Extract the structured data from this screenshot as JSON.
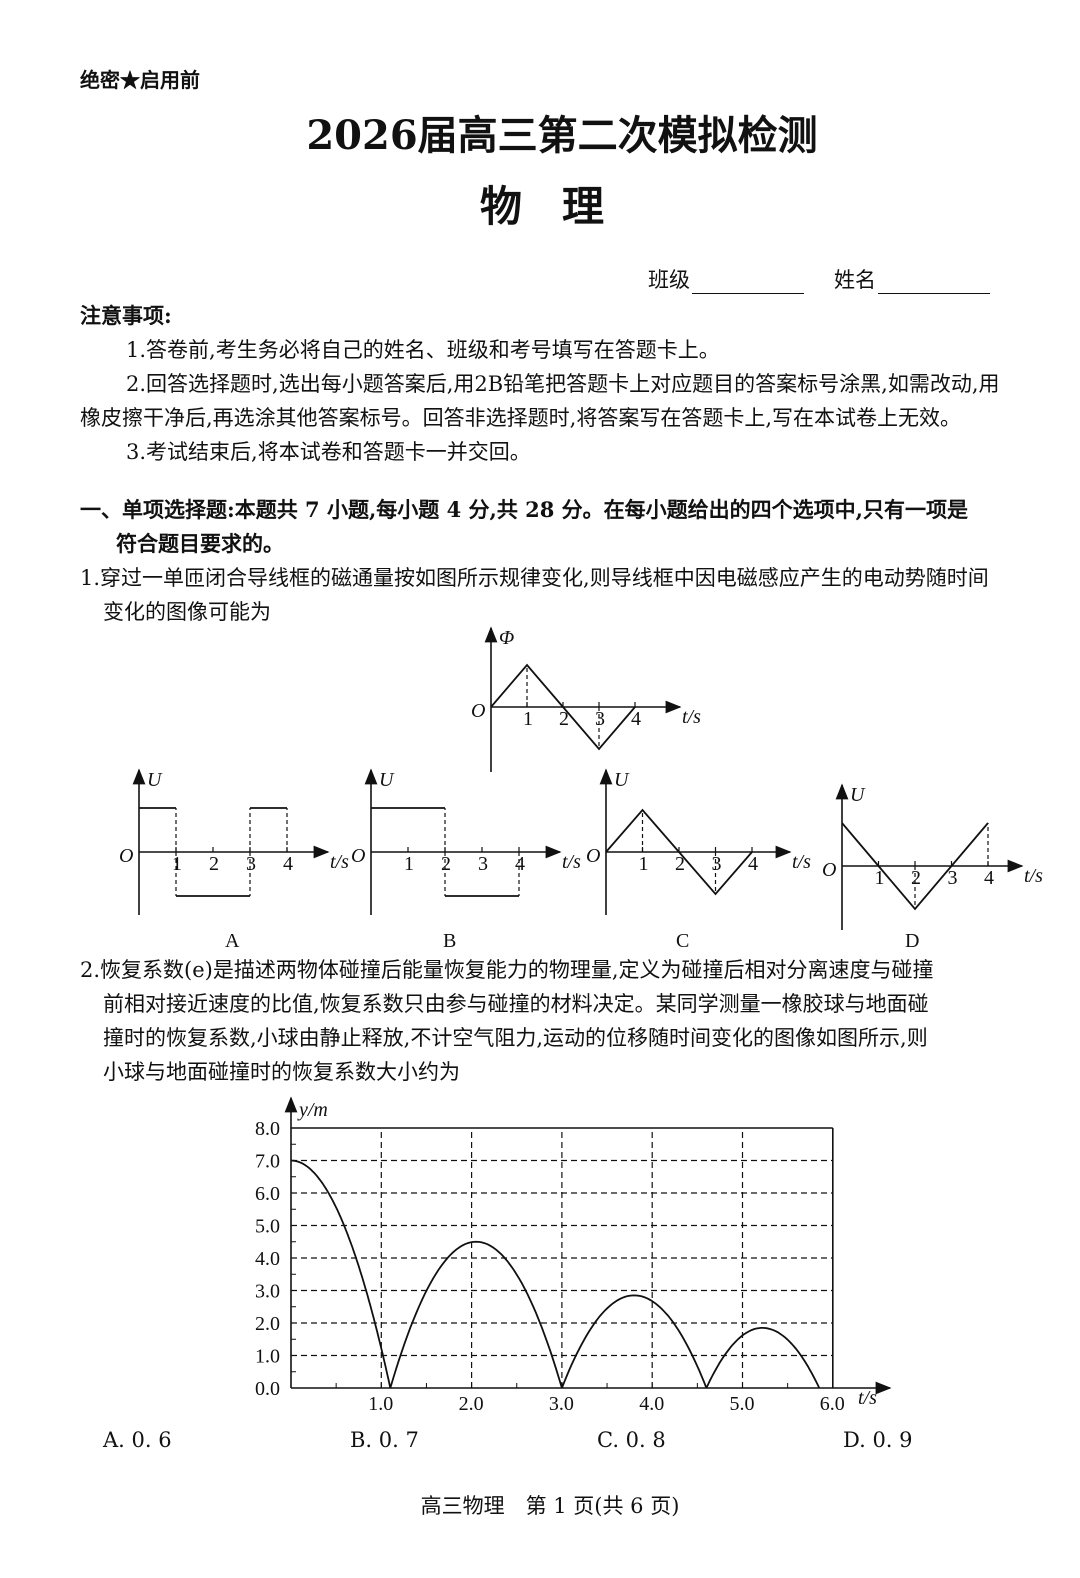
{
  "header": {
    "secret": "绝密★启用前",
    "title": "2026届高三第二次模拟检测",
    "subject": "物理",
    "class_label": "班级",
    "name_label": "姓名"
  },
  "notes": {
    "heading": "注意事项:",
    "lines": [
      "1.答卷前,考生务必将自己的姓名、班级和考号填写在答题卡上。",
      "2.回答选择题时,选出每小题答案后,用2B铅笔把答题卡上对应题目的答案标号涂黑,如需改动,用",
      "橡皮擦干净后,再选涂其他答案标号。回答非选择题时,将答案写在答题卡上,写在本试卷上无效。",
      "3.考试结束后,将本试卷和答题卡一并交回。"
    ]
  },
  "section": {
    "lines": [
      "一、单项选择题:本题共 7 小题,每小题 4 分,共 28 分。在每小题给出的四个选项中,只有一项是",
      "符合题目要求的。"
    ]
  },
  "q1": {
    "lines": [
      "1.穿过一单匝闭合导线框的磁通量按如图所示规律变化,则导线框中因电磁感应产生的电动势随时间",
      "变化的图像可能为"
    ],
    "graphs": [
      {
        "id": "phi",
        "ylabel": "Φ",
        "xlabel": "t/s",
        "origin": "O",
        "ticks": [
          "1",
          "2",
          "3",
          "4"
        ],
        "points": [
          [
            0,
            0
          ],
          [
            1,
            1
          ],
          [
            2,
            0
          ],
          [
            3,
            -1
          ],
          [
            4,
            0
          ]
        ],
        "dashed": [
          [
            1,
            1
          ],
          [
            3,
            -1
          ]
        ]
      },
      {
        "id": "A",
        "caption": "A",
        "ylabel": "U",
        "xlabel": "t/s",
        "origin": "O",
        "ticks": [
          "1",
          "2",
          "3",
          "4"
        ],
        "points": [
          [
            0,
            1
          ],
          [
            1,
            1
          ],
          null,
          [
            1,
            -1
          ],
          [
            3,
            -1
          ],
          null,
          [
            3,
            1
          ],
          [
            4,
            1
          ]
        ],
        "dashed": [
          [
            1,
            1
          ],
          [
            1,
            -1
          ],
          [
            3,
            -1
          ],
          [
            3,
            1
          ],
          [
            4,
            1
          ],
          [
            4,
            0
          ]
        ]
      },
      {
        "id": "B",
        "caption": "B",
        "ylabel": "U",
        "xlabel": "t/s",
        "origin": "O",
        "ticks": [
          "1",
          "2",
          "3",
          "4"
        ],
        "points": [
          [
            0,
            1
          ],
          [
            2,
            1
          ],
          null,
          [
            2,
            -1
          ],
          [
            4,
            -1
          ]
        ],
        "dashed": [
          [
            2,
            1
          ],
          [
            2,
            -1
          ],
          [
            4,
            -1
          ],
          [
            4,
            0
          ]
        ]
      },
      {
        "id": "C",
        "caption": "C",
        "ylabel": "U",
        "xlabel": "t/s",
        "origin": "O",
        "ticks": [
          "1",
          "2",
          "3",
          "4"
        ],
        "points": [
          [
            0,
            0
          ],
          [
            1,
            1
          ],
          [
            2,
            0
          ],
          [
            3,
            -1
          ],
          [
            4,
            0
          ]
        ],
        "dashed": [
          [
            1,
            1
          ],
          [
            3,
            -1
          ]
        ]
      },
      {
        "id": "D",
        "caption": "D",
        "ylabel": "U",
        "xlabel": "t/s",
        "origin": "O",
        "ticks": [
          "1",
          "2",
          "3",
          "4"
        ],
        "points": [
          [
            0,
            1
          ],
          [
            1,
            0
          ],
          [
            2,
            -1
          ],
          [
            3,
            0
          ],
          [
            4,
            1
          ]
        ],
        "dashed": [
          [
            2,
            -1
          ],
          [
            4,
            1
          ]
        ]
      }
    ]
  },
  "q2": {
    "lines": [
      "2.恢复系数(e)是描述两物体碰撞后能量恢复能力的物理量,定义为碰撞后相对分离速度与碰撞",
      "前相对接近速度的比值,恢复系数只由参与碰撞的材料决定。某同学测量一橡胶球与地面碰",
      "撞时的恢复系数,小球由静止释放,不计空气阻力,运动的位移随时间变化的图像如图所示,则",
      "小球与地面碰撞时的恢复系数大小约为"
    ],
    "options": [
      "A. 0. 6",
      "B. 0. 7",
      "C. 0. 8",
      "D. 0. 9"
    ]
  },
  "chart_data": {
    "type": "line",
    "xlabel": "t/s",
    "ylabel": "y/m",
    "xlim": [
      0,
      6
    ],
    "ylim": [
      0,
      8
    ],
    "grid": true,
    "xticks": [
      "1.0",
      "2.0",
      "3.0",
      "4.0",
      "5.0",
      "6.0"
    ],
    "yticks": [
      "0.0",
      "1.0",
      "2.0",
      "3.0",
      "4.0",
      "5.0",
      "6.0",
      "7.0",
      "8.0"
    ],
    "segments": [
      {
        "t_start": 0,
        "t_end": 1.1,
        "peak_t": 0,
        "peak_y": 7.0
      },
      {
        "t_start": 1.1,
        "t_end": 3.0,
        "peak_t": 2.05,
        "peak_y": 4.5
      },
      {
        "t_start": 3.0,
        "t_end": 4.6,
        "peak_t": 3.8,
        "peak_y": 2.85
      },
      {
        "t_start": 4.6,
        "t_end": 5.85,
        "peak_t": 5.22,
        "peak_y": 1.85
      }
    ]
  },
  "footer": {
    "text": "高三物理　第 1 页(共 6 页)"
  }
}
